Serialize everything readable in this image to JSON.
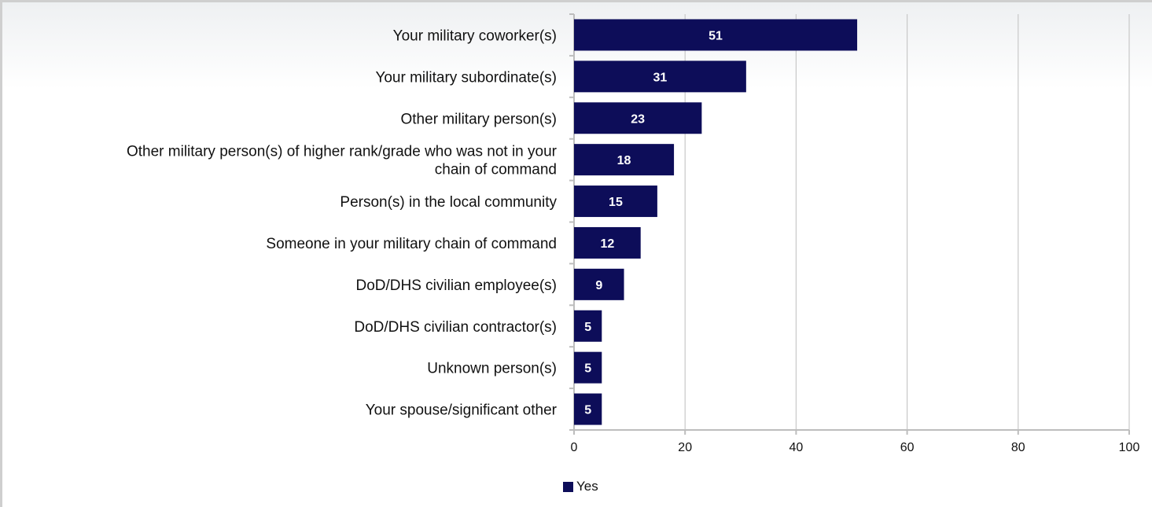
{
  "chart_data": {
    "type": "bar",
    "orientation": "horizontal",
    "categories": [
      "Your military coworker(s)",
      "Your military subordinate(s)",
      "Other military person(s)",
      "Other military person(s) of higher rank/grade who was not in your chain of command",
      "Person(s) in the local community",
      "Someone in your military chain of command",
      "DoD/DHS civilian employee(s)",
      "DoD/DHS civilian contractor(s)",
      "Unknown person(s)",
      "Your spouse/significant other"
    ],
    "category_lines": [
      [
        "Your military coworker(s)"
      ],
      [
        "Your military subordinate(s)"
      ],
      [
        "Other military person(s)"
      ],
      [
        "Other military person(s) of higher rank/grade who was not in your",
        "chain of command"
      ],
      [
        "Person(s) in the local community"
      ],
      [
        "Someone in your military chain of command"
      ],
      [
        "DoD/DHS civilian employee(s)"
      ],
      [
        "DoD/DHS civilian contractor(s)"
      ],
      [
        "Unknown person(s)"
      ],
      [
        "Your spouse/significant other"
      ]
    ],
    "series": [
      {
        "name": "Yes",
        "values": [
          51,
          31,
          23,
          18,
          15,
          12,
          9,
          5,
          5,
          5
        ],
        "color": "#0d0d59"
      }
    ],
    "xlim": [
      0,
      100
    ],
    "xticks": [
      0,
      20,
      40,
      60,
      80,
      100
    ],
    "grid": true,
    "legend_position": "bottom",
    "data_labels": true
  },
  "legend": {
    "label": "Yes"
  }
}
